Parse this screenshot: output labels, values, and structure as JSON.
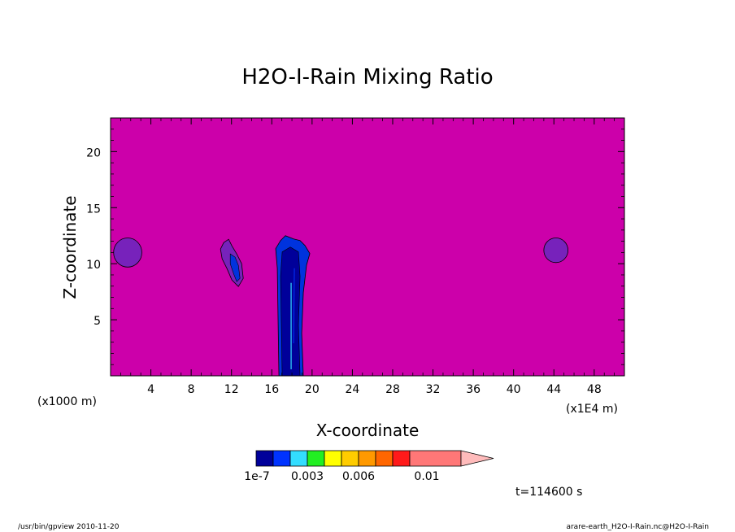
{
  "chart_data": {
    "type": "heatmap",
    "title": "H2O-I-Rain Mixing Ratio",
    "xlabel": "X-coordinate",
    "ylabel": "Z-coordinate",
    "x_unit": "(x1E4 m)",
    "y_unit": "(x1000 m)",
    "xlim": [
      0,
      51
    ],
    "ylim": [
      0,
      23
    ],
    "x_ticks": [
      4,
      8,
      12,
      16,
      20,
      24,
      28,
      32,
      36,
      40,
      44,
      48
    ],
    "y_ticks": [
      5,
      10,
      15,
      20
    ],
    "background_color": "#cc00aa",
    "colorbar": {
      "colors": [
        "#00009a",
        "#0033ff",
        "#33ddff",
        "#22ee22",
        "#ffff00",
        "#ffcc00",
        "#ff9900",
        "#ff6600",
        "#ff1a1a",
        "#ff7777",
        "#ffbbbb"
      ],
      "labels": [
        "1e-7",
        "0.003",
        "0.006",
        "0.01"
      ],
      "label_values": [
        1e-07,
        0.003,
        0.006,
        0.01
      ]
    },
    "features": [
      {
        "name": "left-edge-cell",
        "x": 1.7,
        "z": 11.0,
        "rx": 1.4,
        "rz": 1.3,
        "color": "#7722bb"
      },
      {
        "name": "right-cell",
        "x": 44.2,
        "z": 11.2,
        "rx": 1.2,
        "rz": 1.1,
        "color": "#7722bb"
      },
      {
        "name": "small-cloud",
        "x": 12.2,
        "z": 10.0,
        "color": "#7722bb",
        "core_color": "#0033dd"
      },
      {
        "name": "main-column",
        "x": 18.0,
        "z_top": 12.5,
        "color": "#0033dd",
        "core_color": "#00009a"
      }
    ],
    "grid": false
  },
  "annotations": {
    "time": "t=114600 s",
    "footer_left": "/usr/bin/gpview  2010-11-20",
    "footer_right": "arare-earth_H2O-I-Rain.nc@H2O-I-Rain"
  }
}
